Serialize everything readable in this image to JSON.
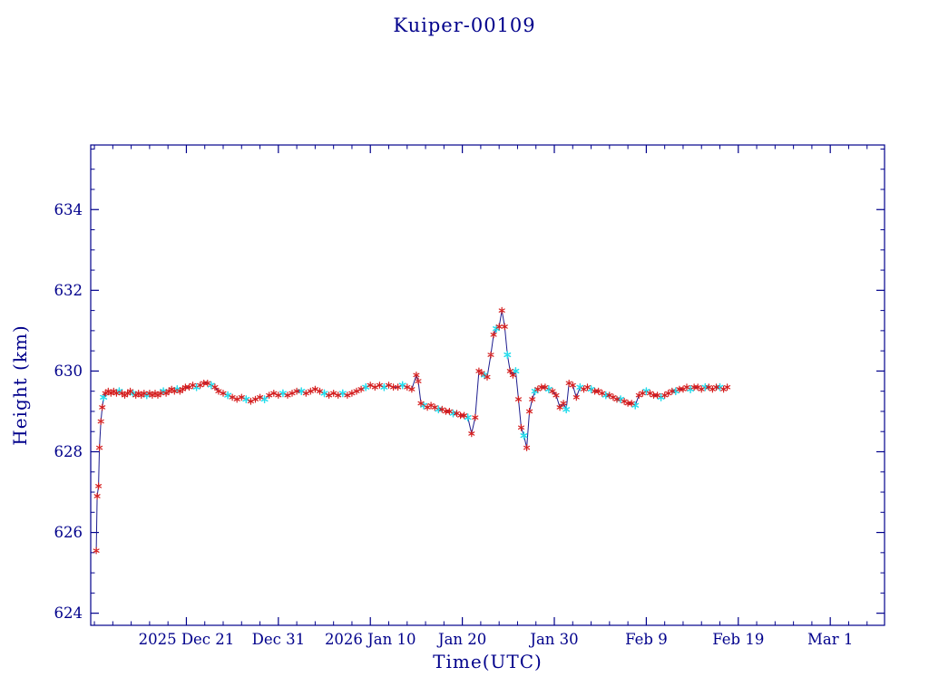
{
  "chart_data": {
    "type": "line",
    "title": "Kuiper-00109",
    "xlabel": "Time(UTC)",
    "ylabel": "Height (km)",
    "xlim": [
      -0.4,
      85.9
    ],
    "ylim": [
      623.7,
      635.6
    ],
    "x_axis_unit": "days since 2025-12-11",
    "x_ticks": {
      "values": [
        10,
        20,
        30,
        40,
        50,
        60,
        70,
        80
      ],
      "labels": [
        "2025 Dec 21",
        "Dec 31",
        "2026 Jan 10",
        "Jan 20",
        "Jan 30",
        "Feb 9",
        "Feb 19",
        "Mar 1"
      ],
      "minor_step": 2
    },
    "y_ticks": {
      "values": [
        624,
        626,
        628,
        630,
        632,
        634
      ],
      "labels": [
        "624",
        "626",
        "628",
        "630",
        "632",
        "634"
      ],
      "minor_step": 0.5
    },
    "grid": false,
    "legend": null,
    "colors": {
      "line": "#1c1c8f",
      "marker_primary": "#d51e1e",
      "marker_secondary": "#25dcec",
      "axis": "#00008b",
      "text": "#00008b"
    },
    "marker_codes": {
      "r": "red-asterisk",
      "c": "cyan-asterisk"
    },
    "series": [
      {
        "name": "height",
        "points": [
          [
            0.2,
            625.55,
            "r"
          ],
          [
            0.3,
            626.9,
            "r"
          ],
          [
            0.45,
            627.15,
            "r"
          ],
          [
            0.55,
            628.1,
            "r"
          ],
          [
            0.7,
            628.75,
            "r"
          ],
          [
            0.85,
            629.1,
            "r"
          ],
          [
            1.0,
            629.35,
            "c"
          ],
          [
            1.2,
            629.45,
            "r"
          ],
          [
            1.5,
            629.5,
            "r"
          ],
          [
            1.8,
            629.45,
            "r"
          ],
          [
            2.1,
            629.5,
            "r"
          ],
          [
            2.4,
            629.45,
            "r"
          ],
          [
            2.7,
            629.5,
            "c"
          ],
          [
            3.0,
            629.45,
            "r"
          ],
          [
            3.3,
            629.4,
            "r"
          ],
          [
            3.6,
            629.45,
            "r"
          ],
          [
            3.9,
            629.5,
            "r"
          ],
          [
            4.2,
            629.45,
            "c"
          ],
          [
            4.5,
            629.4,
            "r"
          ],
          [
            4.8,
            629.45,
            "r"
          ],
          [
            5.1,
            629.4,
            "r"
          ],
          [
            5.4,
            629.45,
            "r"
          ],
          [
            5.7,
            629.4,
            "c"
          ],
          [
            6.0,
            629.45,
            "r"
          ],
          [
            6.3,
            629.4,
            "r"
          ],
          [
            6.6,
            629.45,
            "r"
          ],
          [
            6.9,
            629.4,
            "r"
          ],
          [
            7.2,
            629.45,
            "r"
          ],
          [
            7.5,
            629.5,
            "c"
          ],
          [
            7.8,
            629.45,
            "r"
          ],
          [
            8.1,
            629.5,
            "r"
          ],
          [
            8.4,
            629.55,
            "r"
          ],
          [
            8.7,
            629.5,
            "r"
          ],
          [
            9.0,
            629.55,
            "c"
          ],
          [
            9.3,
            629.5,
            "r"
          ],
          [
            9.6,
            629.55,
            "r"
          ],
          [
            9.9,
            629.6,
            "r"
          ],
          [
            10.3,
            629.6,
            "r"
          ],
          [
            10.7,
            629.65,
            "r"
          ],
          [
            11.1,
            629.6,
            "c"
          ],
          [
            11.5,
            629.65,
            "r"
          ],
          [
            11.9,
            629.7,
            "r"
          ],
          [
            12.3,
            629.7,
            "r"
          ],
          [
            12.7,
            629.65,
            "c"
          ],
          [
            13.1,
            629.6,
            "r"
          ],
          [
            13.5,
            629.5,
            "r"
          ],
          [
            14.0,
            629.45,
            "r"
          ],
          [
            14.5,
            629.4,
            "c"
          ],
          [
            15.0,
            629.35,
            "r"
          ],
          [
            15.5,
            629.3,
            "r"
          ],
          [
            16.0,
            629.35,
            "r"
          ],
          [
            16.5,
            629.3,
            "c"
          ],
          [
            17.0,
            629.25,
            "r"
          ],
          [
            17.5,
            629.3,
            "r"
          ],
          [
            18.0,
            629.35,
            "r"
          ],
          [
            18.5,
            629.3,
            "c"
          ],
          [
            19.0,
            629.4,
            "r"
          ],
          [
            19.5,
            629.45,
            "r"
          ],
          [
            20.0,
            629.4,
            "r"
          ],
          [
            20.5,
            629.45,
            "c"
          ],
          [
            21.0,
            629.4,
            "r"
          ],
          [
            21.5,
            629.45,
            "r"
          ],
          [
            22.0,
            629.5,
            "r"
          ],
          [
            22.5,
            629.5,
            "c"
          ],
          [
            23.0,
            629.45,
            "r"
          ],
          [
            23.5,
            629.5,
            "r"
          ],
          [
            24.0,
            629.55,
            "r"
          ],
          [
            24.5,
            629.5,
            "r"
          ],
          [
            25.0,
            629.45,
            "c"
          ],
          [
            25.5,
            629.4,
            "r"
          ],
          [
            26.0,
            629.45,
            "r"
          ],
          [
            26.5,
            629.4,
            "r"
          ],
          [
            27.0,
            629.45,
            "c"
          ],
          [
            27.5,
            629.4,
            "r"
          ],
          [
            28.0,
            629.45,
            "r"
          ],
          [
            28.5,
            629.5,
            "r"
          ],
          [
            29.0,
            629.55,
            "r"
          ],
          [
            29.5,
            629.6,
            "c"
          ],
          [
            30.0,
            629.65,
            "r"
          ],
          [
            30.5,
            629.6,
            "r"
          ],
          [
            31.0,
            629.65,
            "r"
          ],
          [
            31.5,
            629.6,
            "c"
          ],
          [
            32.0,
            629.65,
            "r"
          ],
          [
            32.5,
            629.6,
            "r"
          ],
          [
            33.0,
            629.6,
            "r"
          ],
          [
            33.5,
            629.65,
            "c"
          ],
          [
            34.0,
            629.6,
            "r"
          ],
          [
            34.5,
            629.55,
            "r"
          ],
          [
            35.0,
            629.9,
            "r"
          ],
          [
            35.2,
            629.75,
            "r"
          ],
          [
            35.5,
            629.2,
            "r"
          ],
          [
            35.8,
            629.15,
            "c"
          ],
          [
            36.2,
            629.1,
            "r"
          ],
          [
            36.6,
            629.15,
            "r"
          ],
          [
            37.0,
            629.1,
            "r"
          ],
          [
            37.4,
            629.05,
            "c"
          ],
          [
            37.8,
            629.05,
            "r"
          ],
          [
            38.2,
            629.0,
            "r"
          ],
          [
            38.6,
            629.0,
            "r"
          ],
          [
            39.0,
            628.95,
            "c"
          ],
          [
            39.4,
            628.95,
            "r"
          ],
          [
            39.8,
            628.9,
            "r"
          ],
          [
            40.2,
            628.9,
            "r"
          ],
          [
            40.6,
            628.85,
            "c"
          ],
          [
            41.0,
            628.45,
            "r"
          ],
          [
            41.4,
            628.85,
            "r"
          ],
          [
            41.8,
            630.0,
            "r"
          ],
          [
            42.1,
            629.95,
            "r"
          ],
          [
            42.4,
            629.9,
            "c"
          ],
          [
            42.7,
            629.85,
            "r"
          ],
          [
            43.1,
            630.4,
            "r"
          ],
          [
            43.4,
            630.9,
            "r"
          ],
          [
            43.7,
            631.05,
            "c"
          ],
          [
            44.0,
            631.1,
            "r"
          ],
          [
            44.3,
            631.5,
            "r"
          ],
          [
            44.6,
            631.1,
            "r"
          ],
          [
            44.9,
            630.4,
            "c"
          ],
          [
            45.2,
            630.0,
            "r"
          ],
          [
            45.5,
            629.9,
            "r"
          ],
          [
            45.8,
            630.0,
            "c"
          ],
          [
            46.1,
            629.3,
            "r"
          ],
          [
            46.4,
            628.6,
            "r"
          ],
          [
            46.7,
            628.4,
            "c"
          ],
          [
            47.0,
            628.1,
            "r"
          ],
          [
            47.3,
            629.0,
            "r"
          ],
          [
            47.6,
            629.3,
            "r"
          ],
          [
            47.9,
            629.5,
            "c"
          ],
          [
            48.2,
            629.55,
            "r"
          ],
          [
            48.6,
            629.6,
            "r"
          ],
          [
            49.0,
            629.6,
            "r"
          ],
          [
            49.4,
            629.55,
            "c"
          ],
          [
            49.8,
            629.5,
            "r"
          ],
          [
            50.2,
            629.4,
            "r"
          ],
          [
            50.6,
            629.1,
            "r"
          ],
          [
            51.0,
            629.2,
            "r"
          ],
          [
            51.3,
            629.05,
            "c"
          ],
          [
            51.6,
            629.7,
            "r"
          ],
          [
            52.0,
            629.65,
            "r"
          ],
          [
            52.4,
            629.35,
            "r"
          ],
          [
            52.8,
            629.6,
            "c"
          ],
          [
            53.2,
            629.55,
            "r"
          ],
          [
            53.6,
            629.6,
            "r"
          ],
          [
            54.0,
            629.55,
            "c"
          ],
          [
            54.4,
            629.5,
            "r"
          ],
          [
            54.8,
            629.5,
            "r"
          ],
          [
            55.2,
            629.45,
            "r"
          ],
          [
            55.6,
            629.4,
            "c"
          ],
          [
            56.0,
            629.4,
            "r"
          ],
          [
            56.4,
            629.35,
            "r"
          ],
          [
            56.8,
            629.3,
            "r"
          ],
          [
            57.2,
            629.3,
            "c"
          ],
          [
            57.6,
            629.25,
            "r"
          ],
          [
            58.0,
            629.2,
            "r"
          ],
          [
            58.4,
            629.2,
            "r"
          ],
          [
            58.8,
            629.15,
            "c"
          ],
          [
            59.2,
            629.4,
            "r"
          ],
          [
            59.6,
            629.45,
            "r"
          ],
          [
            60.0,
            629.5,
            "c"
          ],
          [
            60.4,
            629.45,
            "r"
          ],
          [
            60.8,
            629.4,
            "r"
          ],
          [
            61.2,
            629.4,
            "r"
          ],
          [
            61.6,
            629.35,
            "c"
          ],
          [
            62.0,
            629.4,
            "r"
          ],
          [
            62.4,
            629.45,
            "r"
          ],
          [
            62.8,
            629.5,
            "r"
          ],
          [
            63.2,
            629.5,
            "c"
          ],
          [
            63.6,
            629.55,
            "r"
          ],
          [
            64.0,
            629.55,
            "r"
          ],
          [
            64.4,
            629.6,
            "r"
          ],
          [
            64.8,
            629.55,
            "c"
          ],
          [
            65.2,
            629.6,
            "r"
          ],
          [
            65.6,
            629.6,
            "r"
          ],
          [
            66.0,
            629.55,
            "r"
          ],
          [
            66.4,
            629.6,
            "c"
          ],
          [
            66.8,
            629.6,
            "r"
          ],
          [
            67.2,
            629.55,
            "r"
          ],
          [
            67.6,
            629.6,
            "r"
          ],
          [
            68.0,
            629.6,
            "c"
          ],
          [
            68.4,
            629.55,
            "r"
          ],
          [
            68.8,
            629.6,
            "r"
          ]
        ]
      }
    ]
  }
}
